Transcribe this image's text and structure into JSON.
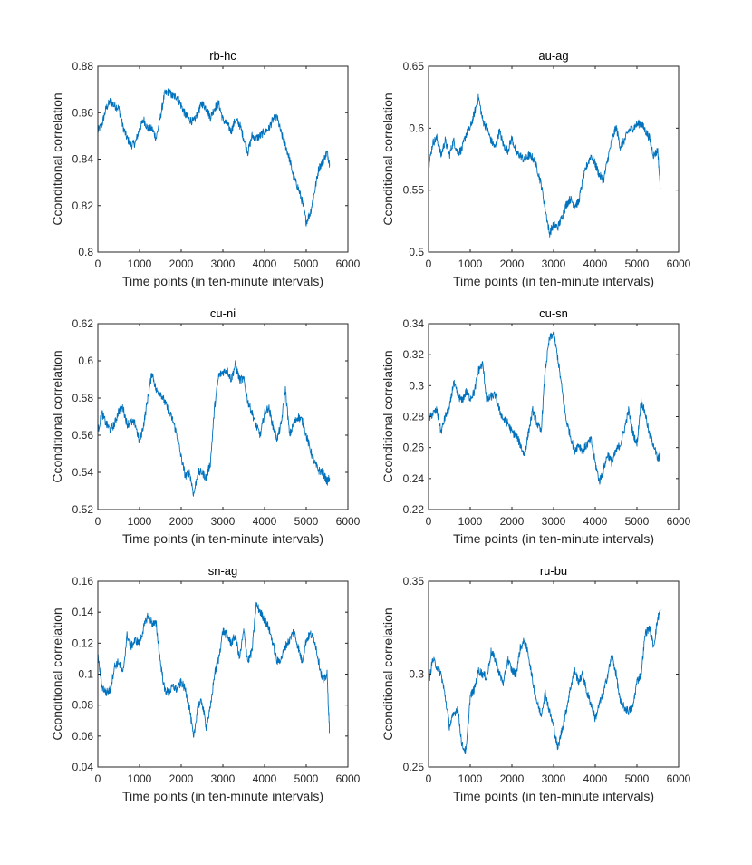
{
  "figure": {
    "line_color": "#0072BD",
    "axis_color": "#262626"
  },
  "chart_data": [
    {
      "type": "line",
      "title": "rb-hc",
      "xlabel": "Time points (in ten-minute intervals)",
      "ylabel": "Cconditional correlation",
      "xlim": [
        0,
        6000
      ],
      "ylim": [
        0.8,
        0.88
      ],
      "xticks": [
        0,
        1000,
        2000,
        3000,
        4000,
        5000,
        6000
      ],
      "xtick_labels": [
        "0",
        "1000",
        "2000",
        "3000",
        "4000",
        "5000",
        "6000"
      ],
      "yticks": [
        0.8,
        0.82,
        0.84,
        0.86,
        0.88
      ],
      "ytick_labels": [
        "0.8",
        "0.82",
        "0.84",
        "0.86",
        "0.88"
      ],
      "series": [
        {
          "name": "rb-hc",
          "x": [
            0,
            100,
            200,
            300,
            400,
            500,
            600,
            700,
            800,
            900,
            1000,
            1100,
            1200,
            1300,
            1400,
            1500,
            1600,
            1700,
            1800,
            1900,
            2000,
            2100,
            2200,
            2300,
            2400,
            2500,
            2600,
            2700,
            2800,
            2900,
            3000,
            3100,
            3200,
            3300,
            3400,
            3500,
            3600,
            3700,
            3800,
            3900,
            4000,
            4100,
            4200,
            4300,
            4400,
            4500,
            4600,
            4700,
            4800,
            4900,
            5000,
            5100,
            5200,
            5300,
            5400,
            5500,
            5560
          ],
          "values": [
            0.852,
            0.855,
            0.862,
            0.865,
            0.863,
            0.862,
            0.854,
            0.849,
            0.846,
            0.847,
            0.853,
            0.857,
            0.853,
            0.853,
            0.849,
            0.858,
            0.868,
            0.869,
            0.867,
            0.867,
            0.863,
            0.859,
            0.857,
            0.856,
            0.86,
            0.864,
            0.862,
            0.858,
            0.862,
            0.864,
            0.857,
            0.855,
            0.852,
            0.857,
            0.855,
            0.849,
            0.843,
            0.85,
            0.849,
            0.85,
            0.852,
            0.853,
            0.857,
            0.858,
            0.851,
            0.846,
            0.84,
            0.832,
            0.828,
            0.822,
            0.813,
            0.817,
            0.826,
            0.836,
            0.839,
            0.843,
            0.838
          ]
        }
      ]
    },
    {
      "type": "line",
      "title": "au-ag",
      "xlabel": "Time points (in ten-minute intervals)",
      "ylabel": "Cconditional correlation",
      "xlim": [
        0,
        6000
      ],
      "ylim": [
        0.5,
        0.65
      ],
      "xticks": [
        0,
        1000,
        2000,
        3000,
        4000,
        5000,
        6000
      ],
      "xtick_labels": [
        "0",
        "1000",
        "2000",
        "3000",
        "4000",
        "5000",
        "6000"
      ],
      "yticks": [
        0.5,
        0.55,
        0.6,
        0.65
      ],
      "ytick_labels": [
        "0.5",
        "0.55",
        "0.6",
        "0.65"
      ],
      "series": [
        {
          "name": "au-ag",
          "x": [
            0,
            100,
            200,
            300,
            400,
            500,
            600,
            700,
            800,
            900,
            1000,
            1100,
            1200,
            1300,
            1400,
            1500,
            1600,
            1700,
            1800,
            1900,
            2000,
            2100,
            2200,
            2300,
            2400,
            2500,
            2600,
            2700,
            2800,
            2900,
            3000,
            3100,
            3200,
            3300,
            3400,
            3500,
            3600,
            3700,
            3800,
            3900,
            4000,
            4100,
            4200,
            4300,
            4400,
            4500,
            4600,
            4700,
            4800,
            4900,
            5000,
            5100,
            5200,
            5300,
            5400,
            5500,
            5560
          ],
          "values": [
            0.568,
            0.588,
            0.592,
            0.578,
            0.59,
            0.578,
            0.59,
            0.58,
            0.583,
            0.595,
            0.6,
            0.612,
            0.625,
            0.606,
            0.6,
            0.59,
            0.584,
            0.598,
            0.586,
            0.582,
            0.592,
            0.58,
            0.578,
            0.574,
            0.578,
            0.576,
            0.568,
            0.555,
            0.535,
            0.515,
            0.522,
            0.52,
            0.528,
            0.538,
            0.543,
            0.538,
            0.54,
            0.558,
            0.57,
            0.578,
            0.571,
            0.562,
            0.558,
            0.575,
            0.59,
            0.601,
            0.585,
            0.59,
            0.598,
            0.6,
            0.603,
            0.604,
            0.598,
            0.592,
            0.578,
            0.582,
            0.552
          ]
        }
      ]
    },
    {
      "type": "line",
      "title": "cu-ni",
      "xlabel": "Time points (in ten-minute intervals)",
      "ylabel": "Cconditional correlation",
      "xlim": [
        0,
        6000
      ],
      "ylim": [
        0.52,
        0.62
      ],
      "xticks": [
        0,
        1000,
        2000,
        3000,
        4000,
        5000,
        6000
      ],
      "xtick_labels": [
        "0",
        "1000",
        "2000",
        "3000",
        "4000",
        "5000",
        "6000"
      ],
      "yticks": [
        0.52,
        0.54,
        0.56,
        0.58,
        0.6,
        0.62
      ],
      "ytick_labels": [
        "0.52",
        "0.54",
        "0.56",
        "0.58",
        "0.6",
        "0.62"
      ],
      "series": [
        {
          "name": "cu-ni",
          "x": [
            0,
            100,
            200,
            300,
            400,
            500,
            600,
            700,
            800,
            900,
            1000,
            1100,
            1200,
            1300,
            1400,
            1500,
            1600,
            1700,
            1800,
            1900,
            2000,
            2100,
            2200,
            2300,
            2400,
            2500,
            2600,
            2700,
            2800,
            2900,
            3000,
            3100,
            3200,
            3300,
            3400,
            3500,
            3600,
            3700,
            3800,
            3900,
            4000,
            4100,
            4200,
            4300,
            4400,
            4500,
            4600,
            4700,
            4800,
            4900,
            5000,
            5100,
            5200,
            5300,
            5400,
            5500,
            5560
          ],
          "values": [
            0.562,
            0.572,
            0.566,
            0.563,
            0.566,
            0.573,
            0.575,
            0.566,
            0.567,
            0.566,
            0.556,
            0.566,
            0.58,
            0.594,
            0.584,
            0.583,
            0.578,
            0.573,
            0.568,
            0.56,
            0.548,
            0.538,
            0.54,
            0.528,
            0.54,
            0.54,
            0.537,
            0.545,
            0.575,
            0.592,
            0.594,
            0.595,
            0.59,
            0.598,
            0.59,
            0.59,
            0.578,
            0.572,
            0.565,
            0.56,
            0.572,
            0.575,
            0.565,
            0.558,
            0.566,
            0.585,
            0.56,
            0.566,
            0.57,
            0.568,
            0.56,
            0.552,
            0.545,
            0.541,
            0.54,
            0.535,
            0.537
          ]
        }
      ]
    },
    {
      "type": "line",
      "title": "cu-sn",
      "xlabel": "Time points (in ten-minute intervals)",
      "ylabel": "Cconditional correlation",
      "xlim": [
        0,
        6000
      ],
      "ylim": [
        0.22,
        0.34
      ],
      "xticks": [
        0,
        1000,
        2000,
        3000,
        4000,
        5000,
        6000
      ],
      "xtick_labels": [
        "0",
        "1000",
        "2000",
        "3000",
        "4000",
        "5000",
        "6000"
      ],
      "yticks": [
        0.22,
        0.24,
        0.26,
        0.28,
        0.3,
        0.32,
        0.34
      ],
      "ytick_labels": [
        "0.22",
        "0.24",
        "0.26",
        "0.28",
        "0.3",
        "0.32",
        "0.34"
      ],
      "series": [
        {
          "name": "cu-sn",
          "x": [
            0,
            100,
            200,
            300,
            400,
            500,
            600,
            700,
            800,
            900,
            1000,
            1100,
            1200,
            1300,
            1400,
            1500,
            1600,
            1700,
            1800,
            1900,
            2000,
            2100,
            2200,
            2300,
            2400,
            2500,
            2600,
            2700,
            2800,
            2900,
            3000,
            3100,
            3200,
            3300,
            3400,
            3500,
            3600,
            3700,
            3800,
            3900,
            4000,
            4100,
            4200,
            4300,
            4400,
            4500,
            4600,
            4700,
            4800,
            4900,
            5000,
            5100,
            5200,
            5300,
            5400,
            5500,
            5560
          ],
          "values": [
            0.278,
            0.282,
            0.284,
            0.27,
            0.28,
            0.285,
            0.302,
            0.294,
            0.29,
            0.296,
            0.292,
            0.296,
            0.31,
            0.314,
            0.29,
            0.293,
            0.294,
            0.284,
            0.278,
            0.276,
            0.27,
            0.268,
            0.262,
            0.255,
            0.27,
            0.284,
            0.276,
            0.27,
            0.31,
            0.33,
            0.334,
            0.318,
            0.298,
            0.278,
            0.268,
            0.258,
            0.262,
            0.258,
            0.262,
            0.265,
            0.25,
            0.238,
            0.246,
            0.256,
            0.25,
            0.258,
            0.262,
            0.272,
            0.284,
            0.27,
            0.262,
            0.29,
            0.282,
            0.268,
            0.262,
            0.252,
            0.256
          ]
        }
      ]
    },
    {
      "type": "line",
      "title": "sn-ag",
      "xlabel": "Time points (in ten-minute intervals)",
      "ylabel": "Cconditional correlation",
      "xlim": [
        0,
        6000
      ],
      "ylim": [
        0.04,
        0.16
      ],
      "xticks": [
        0,
        1000,
        2000,
        3000,
        4000,
        5000,
        6000
      ],
      "xtick_labels": [
        "0",
        "1000",
        "2000",
        "3000",
        "4000",
        "5000",
        "6000"
      ],
      "yticks": [
        0.04,
        0.06,
        0.08,
        0.1,
        0.12,
        0.14,
        0.16
      ],
      "ytick_labels": [
        "0.04",
        "0.06",
        "0.08",
        "0.1",
        "0.12",
        "0.14",
        "0.16"
      ],
      "series": [
        {
          "name": "sn-ag",
          "x": [
            0,
            100,
            200,
            300,
            400,
            500,
            600,
            700,
            800,
            900,
            1000,
            1100,
            1200,
            1300,
            1400,
            1500,
            1600,
            1700,
            1800,
            1900,
            2000,
            2100,
            2200,
            2300,
            2400,
            2500,
            2600,
            2700,
            2800,
            2900,
            3000,
            3100,
            3200,
            3300,
            3400,
            3500,
            3600,
            3700,
            3800,
            3900,
            4000,
            4100,
            4200,
            4300,
            4400,
            4500,
            4600,
            4700,
            4800,
            4900,
            5000,
            5100,
            5200,
            5300,
            5400,
            5500,
            5560
          ],
          "values": [
            0.112,
            0.092,
            0.088,
            0.09,
            0.105,
            0.108,
            0.1,
            0.125,
            0.118,
            0.122,
            0.12,
            0.13,
            0.138,
            0.133,
            0.132,
            0.108,
            0.09,
            0.088,
            0.092,
            0.09,
            0.095,
            0.09,
            0.078,
            0.058,
            0.08,
            0.082,
            0.066,
            0.078,
            0.1,
            0.11,
            0.128,
            0.125,
            0.12,
            0.125,
            0.11,
            0.128,
            0.108,
            0.115,
            0.145,
            0.14,
            0.135,
            0.13,
            0.12,
            0.108,
            0.11,
            0.118,
            0.122,
            0.128,
            0.118,
            0.108,
            0.122,
            0.126,
            0.122,
            0.108,
            0.095,
            0.1,
            0.062
          ]
        }
      ]
    },
    {
      "type": "line",
      "title": "ru-bu",
      "xlabel": "Time points (in ten-minute intervals)",
      "ylabel": "Cconditional correlation",
      "xlim": [
        0,
        6000
      ],
      "ylim": [
        0.25,
        0.35
      ],
      "xticks": [
        0,
        1000,
        2000,
        3000,
        4000,
        5000,
        6000
      ],
      "xtick_labels": [
        "0",
        "1000",
        "2000",
        "3000",
        "4000",
        "5000",
        "6000"
      ],
      "yticks": [
        0.25,
        0.3,
        0.35
      ],
      "ytick_labels": [
        "0.25",
        "0.3",
        "0.35"
      ],
      "series": [
        {
          "name": "ru-bu",
          "x": [
            0,
            100,
            200,
            300,
            400,
            500,
            600,
            700,
            800,
            900,
            1000,
            1100,
            1200,
            1300,
            1400,
            1500,
            1600,
            1700,
            1800,
            1900,
            2000,
            2100,
            2200,
            2300,
            2400,
            2500,
            2600,
            2700,
            2800,
            2900,
            3000,
            3100,
            3200,
            3300,
            3400,
            3500,
            3600,
            3700,
            3800,
            3900,
            4000,
            4100,
            4200,
            4300,
            4400,
            4500,
            4600,
            4700,
            4800,
            4900,
            5000,
            5100,
            5200,
            5300,
            5400,
            5500,
            5560
          ],
          "values": [
            0.295,
            0.308,
            0.304,
            0.3,
            0.288,
            0.272,
            0.278,
            0.282,
            0.262,
            0.258,
            0.288,
            0.292,
            0.302,
            0.3,
            0.298,
            0.312,
            0.308,
            0.3,
            0.295,
            0.308,
            0.302,
            0.3,
            0.314,
            0.318,
            0.31,
            0.296,
            0.285,
            0.278,
            0.29,
            0.28,
            0.272,
            0.26,
            0.27,
            0.28,
            0.292,
            0.302,
            0.296,
            0.3,
            0.29,
            0.284,
            0.276,
            0.284,
            0.29,
            0.3,
            0.31,
            0.3,
            0.285,
            0.282,
            0.28,
            0.282,
            0.296,
            0.3,
            0.322,
            0.325,
            0.315,
            0.33,
            0.334
          ]
        }
      ]
    }
  ]
}
